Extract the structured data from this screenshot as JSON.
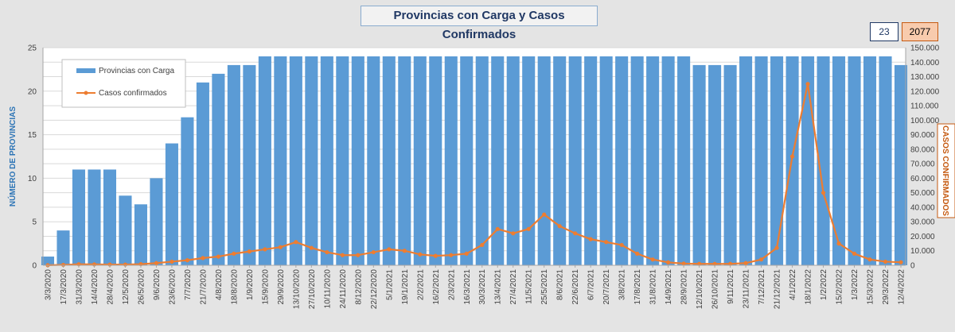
{
  "title": "Provincias con Carga y Casos Confirmados",
  "kpi": {
    "provincias": "23",
    "casos": "2077"
  },
  "chart_data": {
    "type": "bar+line",
    "title": "Provincias con Carga y Casos Confirmados",
    "ylabel_left": "NÚMERO DE PROVINCIAS",
    "ylabel_right": "CASOS CONFIRMADOS",
    "ylim_left": [
      0,
      25
    ],
    "ylim_right": [
      0,
      150000
    ],
    "yticks_left": [
      "0",
      "5",
      "10",
      "15",
      "20",
      "25"
    ],
    "yticks_right": [
      "0",
      "10.000",
      "20.000",
      "30.000",
      "40.000",
      "50.000",
      "60.000",
      "70.000",
      "80.000",
      "90.000",
      "100.000",
      "110.000",
      "120.000",
      "130.000",
      "140.000",
      "150.000"
    ],
    "grid": true,
    "legend_position": "top-left",
    "colors": {
      "bars": "#5b9bd5",
      "line": "#ed7d31",
      "title_text": "#203864",
      "left_axis_label": "#2e75b6",
      "right_axis_label": "#c55a11"
    },
    "x_date_labels": [
      "3/3/2020",
      "17/3/2020",
      "31/3/2020",
      "14/4/2020",
      "28/4/2020",
      "12/5/2020",
      "26/5/2020",
      "9/6/2020",
      "23/6/2020",
      "7/7/2020",
      "21/7/2020",
      "4/8/2020",
      "18/8/2020",
      "1/9/2020",
      "15/9/2020",
      "29/9/2020",
      "13/10/2020",
      "27/10/2020",
      "10/11/2020",
      "24/11/2020",
      "8/12/2020",
      "22/12/2020",
      "5/1/2021",
      "19/1/2021",
      "2/2/2021",
      "16/2/2021",
      "2/3/2021",
      "16/3/2021",
      "30/3/2021",
      "13/4/2021",
      "27/4/2021",
      "11/5/2021",
      "25/5/2021",
      "8/6/2021",
      "22/6/2021",
      "6/7/2021",
      "20/7/2021",
      "3/8/2021",
      "17/8/2021",
      "31/8/2021",
      "14/9/2021",
      "28/9/2021",
      "12/10/2021",
      "26/10/2021",
      "9/11/2021",
      "23/11/2021",
      "7/12/2021",
      "21/12/2021",
      "4/1/2022",
      "18/1/2022",
      "1/2/2022",
      "15/2/2022",
      "1/3/2022",
      "15/3/2022",
      "29/3/2022",
      "12/4/2022"
    ],
    "series": [
      {
        "name": "Provincias con Carga",
        "type": "bar",
        "axis": "left",
        "x": [
          "3/3/2020",
          "17/3/2020",
          "31/3/2020",
          "14/4/2020",
          "28/4/2020",
          "12/5/2020",
          "26/5/2020",
          "9/6/2020",
          "23/6/2020",
          "7/7/2020",
          "21/7/2020",
          "4/8/2020",
          "18/8/2020",
          "1/9/2020",
          "15/9/2020",
          "29/9/2020",
          "13/10/2020",
          "27/10/2020",
          "10/11/2020",
          "24/11/2020",
          "8/12/2020",
          "22/12/2020",
          "5/1/2021",
          "19/1/2021",
          "2/2/2021",
          "16/2/2021",
          "2/3/2021",
          "16/3/2021",
          "30/3/2021",
          "13/4/2021",
          "27/4/2021",
          "11/5/2021",
          "25/5/2021",
          "8/6/2021",
          "22/6/2021",
          "6/7/2021",
          "20/7/2021",
          "3/8/2021",
          "17/8/2021",
          "31/8/2021",
          "14/9/2021",
          "28/9/2021",
          "12/10/2021",
          "26/10/2021",
          "9/11/2021",
          "23/11/2021",
          "7/12/2021",
          "21/12/2021",
          "4/1/2022",
          "18/1/2022",
          "1/2/2022",
          "15/2/2022",
          "1/3/2022",
          "15/3/2022",
          "29/3/2022",
          "12/4/2022"
        ],
        "values": [
          1,
          4,
          11,
          11,
          11,
          8,
          7,
          10,
          14,
          17,
          21,
          22,
          23,
          23,
          24,
          24,
          24,
          24,
          24,
          24,
          24,
          24,
          24,
          24,
          24,
          24,
          24,
          24,
          24,
          24,
          24,
          24,
          24,
          24,
          24,
          24,
          24,
          24,
          24,
          24,
          24,
          24,
          23,
          23,
          23,
          24,
          24,
          24,
          24,
          24,
          24,
          24,
          24,
          24,
          24,
          23
        ]
      },
      {
        "name": "Casos confirmados",
        "type": "line",
        "axis": "right",
        "x": [
          "3/3/2020",
          "17/3/2020",
          "31/3/2020",
          "14/4/2020",
          "28/4/2020",
          "12/5/2020",
          "26/5/2020",
          "9/6/2020",
          "23/6/2020",
          "7/7/2020",
          "21/7/2020",
          "4/8/2020",
          "18/8/2020",
          "1/9/2020",
          "15/9/2020",
          "29/9/2020",
          "13/10/2020",
          "27/10/2020",
          "10/11/2020",
          "24/11/2020",
          "8/12/2020",
          "22/12/2020",
          "5/1/2021",
          "19/1/2021",
          "2/2/2021",
          "16/2/2021",
          "2/3/2021",
          "16/3/2021",
          "30/3/2021",
          "13/4/2021",
          "27/4/2021",
          "11/5/2021",
          "25/5/2021",
          "8/6/2021",
          "22/6/2021",
          "6/7/2021",
          "20/7/2021",
          "3/8/2021",
          "17/8/2021",
          "31/8/2021",
          "14/9/2021",
          "28/9/2021",
          "12/10/2021",
          "26/10/2021",
          "9/11/2021",
          "23/11/2021",
          "7/12/2021",
          "21/12/2021",
          "4/1/2022",
          "18/1/2022",
          "1/2/2022",
          "15/2/2022",
          "1/3/2022",
          "15/3/2022",
          "29/3/2022",
          "12/4/2022"
        ],
        "values": [
          50,
          300,
          700,
          600,
          500,
          500,
          800,
          1500,
          2500,
          3500,
          5000,
          6000,
          8000,
          9500,
          11000,
          12500,
          16000,
          12000,
          9000,
          7000,
          7000,
          9000,
          11000,
          10000,
          7500,
          6500,
          7000,
          8000,
          14000,
          25000,
          22000,
          25000,
          35000,
          27000,
          22000,
          18000,
          16000,
          14000,
          8000,
          4000,
          2000,
          1200,
          1000,
          1000,
          1000,
          1500,
          4000,
          12000,
          75000,
          125000,
          50000,
          15000,
          8000,
          4000,
          2500,
          2077
        ]
      }
    ]
  }
}
